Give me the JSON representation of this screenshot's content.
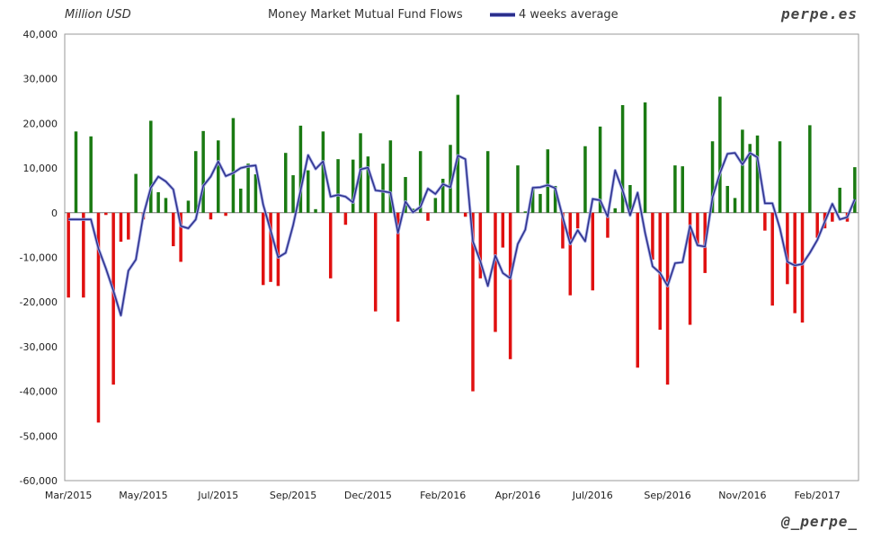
{
  "header": {
    "unit_label": "Million USD",
    "brand": "perpe.es",
    "handle": "@_perpe_"
  },
  "chart_data": {
    "type": "bar",
    "title": "Money Market Mutual Fund Flows",
    "ylim": [
      -60000,
      40000
    ],
    "y_ticks": [
      40000,
      30000,
      20000,
      10000,
      0,
      -10000,
      -20000,
      -30000,
      -40000,
      -50000,
      -60000
    ],
    "y_tick_labels": [
      "40,000",
      "30,000",
      "20,000",
      "10,000",
      "0",
      "-10,000",
      "-20,000",
      "-30,000",
      "-40,000",
      "-50,000",
      "-60,000"
    ],
    "x_tick_labels": [
      "Mar/2015",
      "May/2015",
      "Jul/2015",
      "Sep/2015",
      "Dec/2015",
      "Feb/2016",
      "Apr/2016",
      "Jul/2016",
      "Sep/2016",
      "Nov/2016",
      "Feb/2017"
    ],
    "x_tick_weeks": [
      0,
      10,
      20,
      30,
      40,
      50,
      60,
      70,
      80,
      90,
      100
    ],
    "grid": true,
    "positive_color": "#1a7a12",
    "negative_color": "#e01010",
    "line_color": "#2b2f8a",
    "legend_position": "top",
    "series": [
      {
        "kind": "bar",
        "values": [
          -19000,
          18200,
          -19000,
          17100,
          -47000,
          -500,
          -38500,
          -6500,
          -6000,
          8700,
          -1500,
          20600,
          4600,
          3300,
          -7500,
          -11000,
          2700,
          13800,
          18300,
          -1500,
          16200,
          -700,
          21200,
          5400,
          11000,
          8600,
          -16200,
          -15500,
          -16400,
          13400,
          8400,
          19500,
          9500,
          800,
          18200,
          -14700,
          12000,
          -2700,
          11900,
          17800,
          12600,
          -22100,
          11000,
          16200,
          -24400,
          8000,
          900,
          13800,
          -1800,
          3300,
          7600,
          15200,
          26400,
          -900,
          -40000,
          -14700,
          13800,
          -26700,
          -7800,
          -32800,
          10600,
          300,
          5600,
          4200,
          14200,
          6000,
          -8000,
          -18500,
          -3500,
          14900,
          -17400,
          19300,
          -5600,
          1000,
          24100,
          6200,
          -34700,
          24700,
          -10500,
          -26200,
          -38500,
          10600,
          10400,
          -25100,
          -7000,
          -13500,
          16000,
          26000,
          6000,
          3300,
          18600,
          15400,
          17300,
          -4000,
          -20800,
          16000,
          -16000,
          -22500,
          -24600,
          19600,
          -5600,
          -3500,
          -2000,
          5600,
          -2000,
          10200
        ]
      },
      {
        "kind": "line",
        "name": "4 weeks average",
        "values": [
          -1500,
          -1500,
          -1500,
          -1500,
          -8000,
          -12500,
          -17500,
          -23000,
          -13000,
          -10500,
          -500,
          5600,
          8100,
          7000,
          5200,
          -3000,
          -3500,
          -1500,
          6000,
          8100,
          11500,
          8200,
          8900,
          10000,
          10400,
          10600,
          1800,
          -4000,
          -10000,
          -9000,
          -2800,
          5000,
          12900,
          9800,
          11500,
          3600,
          4000,
          3600,
          2300,
          9700,
          10100,
          5000,
          4800,
          4500,
          -4500,
          2500,
          100,
          1300,
          5400,
          4200,
          6400,
          5700,
          12800,
          12000,
          -6400,
          -10900,
          -16400,
          -9600,
          -13500,
          -14700,
          -7000,
          -3800,
          5600,
          5700,
          6200,
          5500,
          -1000,
          -7000,
          -3900,
          -6400,
          3100,
          2800,
          -900,
          9500,
          5000,
          -600,
          4500,
          -4500,
          -12000,
          -13500,
          -16400,
          -11300,
          -11100,
          -2900,
          -7300,
          -7600,
          3400,
          8900,
          13200,
          13400,
          10800,
          13400,
          12400,
          2100,
          2100,
          -3500,
          -11000,
          -11800,
          -11500,
          -9000,
          -6100,
          -2000,
          2000,
          -1500,
          -1000,
          3000
        ]
      }
    ]
  }
}
